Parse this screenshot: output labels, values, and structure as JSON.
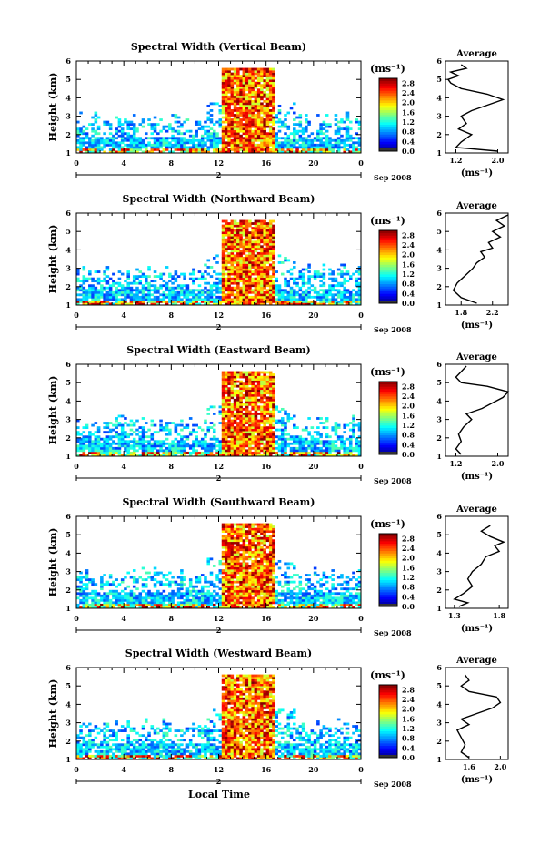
{
  "figure": {
    "shared_xlabel": "Local Time"
  },
  "chart_data": [
    {
      "type": "heatmap",
      "title": "Spectral Width (Vertical Beam)",
      "xlabel": "",
      "ylabel": "Height (km)",
      "xlim": [
        0,
        24
      ],
      "ylim": [
        1,
        6
      ],
      "x_ticks": [
        "0",
        "4",
        "8",
        "12",
        "16",
        "20",
        "0"
      ],
      "y_ticks": [
        "1",
        "2",
        "3",
        "4",
        "5",
        "6"
      ],
      "date_label": "2",
      "date_suffix": "Sep 2008",
      "colorbar": {
        "unit": "(ms⁻¹)",
        "ticks": [
          "0.0",
          "0.4",
          "0.8",
          "1.2",
          "1.6",
          "2.0",
          "2.4",
          "2.8"
        ],
        "range": [
          0.0,
          3.0
        ]
      },
      "average": {
        "title": "Average",
        "xlabel": "(ms⁻¹)",
        "x_ticks": [
          "1.2",
          "2.0"
        ],
        "xlim": [
          1.0,
          2.2
        ],
        "profile": [
          [
            1.1,
            2.0
          ],
          [
            1.3,
            1.2
          ],
          [
            1.6,
            1.3
          ],
          [
            2.0,
            1.5
          ],
          [
            2.3,
            1.25
          ],
          [
            2.6,
            1.4
          ],
          [
            3.0,
            1.3
          ],
          [
            3.3,
            1.5
          ],
          [
            3.6,
            1.8
          ],
          [
            3.9,
            2.1
          ],
          [
            4.2,
            1.8
          ],
          [
            4.5,
            1.3
          ],
          [
            4.8,
            1.1
          ],
          [
            5.0,
            1.05
          ],
          [
            5.2,
            1.25
          ],
          [
            5.4,
            1.1
          ],
          [
            5.6,
            1.4
          ],
          [
            5.8,
            1.3
          ]
        ]
      }
    },
    {
      "type": "heatmap",
      "title": "Spectral Width (Northward Beam)",
      "xlabel": "",
      "ylabel": "Height (km)",
      "xlim": [
        0,
        24
      ],
      "ylim": [
        1,
        6
      ],
      "x_ticks": [
        "0",
        "4",
        "8",
        "12",
        "16",
        "20",
        "0"
      ],
      "y_ticks": [
        "1",
        "2",
        "3",
        "4",
        "5",
        "6"
      ],
      "date_label": "2",
      "date_suffix": "Sep 2008",
      "colorbar": {
        "unit": "(ms⁻¹)",
        "ticks": [
          "0.0",
          "0.4",
          "0.8",
          "1.2",
          "1.6",
          "2.0",
          "2.4",
          "2.8"
        ],
        "range": [
          0.0,
          3.0
        ]
      },
      "average": {
        "title": "Average",
        "xlabel": "(ms⁻¹)",
        "x_ticks": [
          "1.8",
          "2.2"
        ],
        "xlim": [
          1.6,
          2.4
        ],
        "profile": [
          [
            1.1,
            2.0
          ],
          [
            1.4,
            1.8
          ],
          [
            1.8,
            1.7
          ],
          [
            2.2,
            1.75
          ],
          [
            2.6,
            1.85
          ],
          [
            3.0,
            1.95
          ],
          [
            3.3,
            2.0
          ],
          [
            3.6,
            2.1
          ],
          [
            3.9,
            2.05
          ],
          [
            4.1,
            2.2
          ],
          [
            4.4,
            2.15
          ],
          [
            4.7,
            2.3
          ],
          [
            5.0,
            2.2
          ],
          [
            5.3,
            2.35
          ],
          [
            5.6,
            2.25
          ],
          [
            5.9,
            2.4
          ]
        ]
      }
    },
    {
      "type": "heatmap",
      "title": "Spectral Width (Eastward Beam)",
      "xlabel": "",
      "ylabel": "Height (km)",
      "xlim": [
        0,
        24
      ],
      "ylim": [
        1,
        6
      ],
      "x_ticks": [
        "0",
        "4",
        "8",
        "12",
        "16",
        "20",
        "0"
      ],
      "y_ticks": [
        "1",
        "2",
        "3",
        "4",
        "5",
        "6"
      ],
      "date_label": "2",
      "date_suffix": "Sep 2008",
      "colorbar": {
        "unit": "(ms⁻¹)",
        "ticks": [
          "0.0",
          "0.4",
          "0.8",
          "1.2",
          "1.6",
          "2.0",
          "2.4",
          "2.8"
        ],
        "range": [
          0.0,
          3.0
        ]
      },
      "average": {
        "title": "Average",
        "xlabel": "(ms⁻¹)",
        "x_ticks": [
          "1.2",
          "2.0"
        ],
        "xlim": [
          1.0,
          2.2
        ],
        "profile": [
          [
            1.1,
            1.3
          ],
          [
            1.4,
            1.2
          ],
          [
            1.8,
            1.3
          ],
          [
            2.2,
            1.25
          ],
          [
            2.6,
            1.35
          ],
          [
            3.0,
            1.5
          ],
          [
            3.3,
            1.4
          ],
          [
            3.6,
            1.7
          ],
          [
            3.9,
            1.9
          ],
          [
            4.2,
            2.1
          ],
          [
            4.5,
            2.2
          ],
          [
            4.8,
            1.8
          ],
          [
            5.0,
            1.3
          ],
          [
            5.3,
            1.2
          ],
          [
            5.6,
            1.3
          ],
          [
            5.9,
            1.4
          ]
        ]
      }
    },
    {
      "type": "heatmap",
      "title": "Spectral Width (Southward Beam)",
      "xlabel": "",
      "ylabel": "Height (km)",
      "xlim": [
        0,
        24
      ],
      "ylim": [
        1,
        6
      ],
      "x_ticks": [
        "0",
        "4",
        "8",
        "12",
        "16",
        "20",
        "0"
      ],
      "y_ticks": [
        "1",
        "2",
        "3",
        "4",
        "5",
        "6"
      ],
      "date_label": "2",
      "date_suffix": "Sep 2008",
      "colorbar": {
        "unit": "(ms⁻¹)",
        "ticks": [
          "0.0",
          "0.4",
          "0.8",
          "1.2",
          "1.6",
          "2.0",
          "2.4",
          "2.8"
        ],
        "range": [
          0.0,
          3.0
        ]
      },
      "average": {
        "title": "Average",
        "xlabel": "(ms⁻¹)",
        "x_ticks": [
          "1.3",
          "1.8"
        ],
        "xlim": [
          1.2,
          1.9
        ],
        "profile": [
          [
            1.1,
            1.35
          ],
          [
            1.3,
            1.45
          ],
          [
            1.5,
            1.3
          ],
          [
            1.8,
            1.4
          ],
          [
            2.2,
            1.5
          ],
          [
            2.6,
            1.45
          ],
          [
            3.0,
            1.5
          ],
          [
            3.4,
            1.6
          ],
          [
            3.8,
            1.65
          ],
          [
            4.1,
            1.8
          ],
          [
            4.4,
            1.75
          ],
          [
            4.6,
            1.85
          ],
          [
            4.9,
            1.7
          ],
          [
            5.2,
            1.6
          ],
          [
            5.5,
            1.7
          ]
        ]
      }
    },
    {
      "type": "heatmap",
      "title": "Spectral Width (Westward Beam)",
      "xlabel": "Local Time",
      "ylabel": "Height (km)",
      "xlim": [
        0,
        24
      ],
      "ylim": [
        1,
        6
      ],
      "x_ticks": [
        "0",
        "4",
        "8",
        "12",
        "16",
        "20",
        "0"
      ],
      "y_ticks": [
        "1",
        "2",
        "3",
        "4",
        "5",
        "6"
      ],
      "date_label": "2",
      "date_suffix": "Sep 2008",
      "colorbar": {
        "unit": "(ms⁻¹)",
        "ticks": [
          "0.0",
          "0.4",
          "0.8",
          "1.2",
          "1.6",
          "2.0",
          "2.4",
          "2.8"
        ],
        "range": [
          0.0,
          3.0
        ]
      },
      "average": {
        "title": "Average",
        "xlabel": "(ms⁻¹)",
        "x_ticks": [
          "1.6",
          "2.0"
        ],
        "xlim": [
          1.3,
          2.1
        ],
        "profile": [
          [
            1.1,
            1.6
          ],
          [
            1.4,
            1.5
          ],
          [
            1.8,
            1.55
          ],
          [
            2.2,
            1.5
          ],
          [
            2.6,
            1.45
          ],
          [
            2.9,
            1.6
          ],
          [
            3.2,
            1.5
          ],
          [
            3.5,
            1.7
          ],
          [
            3.8,
            1.9
          ],
          [
            4.1,
            2.0
          ],
          [
            4.4,
            1.95
          ],
          [
            4.7,
            1.6
          ],
          [
            5.0,
            1.5
          ],
          [
            5.3,
            1.6
          ],
          [
            5.6,
            1.55
          ]
        ]
      }
    }
  ]
}
